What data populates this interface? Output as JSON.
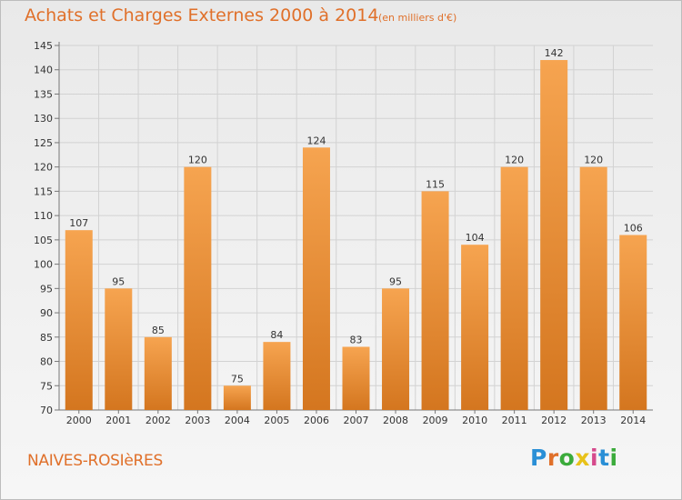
{
  "header": {
    "title": "Achats et Charges Externes 2000 à 2014",
    "subtitle": "(en milliers d'€)"
  },
  "footer": {
    "place": "NAIVES-ROSIèRES",
    "logo": "Proxiti"
  },
  "colors": {
    "accent": "#e0702a",
    "bar_light": "#f6a450",
    "bar_dark": "#d4761f",
    "logo_letters": [
      "#2a8fd6",
      "#e0702a",
      "#3bab3b",
      "#e8c21a",
      "#d64a8c",
      "#2a8fd6",
      "#3bab3b"
    ]
  },
  "chart_data": {
    "type": "bar",
    "categories": [
      "2000",
      "2001",
      "2002",
      "2003",
      "2004",
      "2005",
      "2006",
      "2007",
      "2008",
      "2009",
      "2010",
      "2011",
      "2012",
      "2013",
      "2014"
    ],
    "values": [
      107,
      95,
      85,
      120,
      75,
      84,
      124,
      83,
      95,
      115,
      104,
      120,
      142,
      120,
      106
    ],
    "data_labels": [
      "107",
      "95",
      "85",
      "120",
      "75",
      "84",
      "124",
      "83",
      "95",
      "115",
      "104",
      "120",
      "142",
      "120",
      "106"
    ],
    "ylim": [
      70,
      145
    ],
    "yticks": [
      70,
      75,
      80,
      85,
      90,
      95,
      100,
      105,
      110,
      115,
      120,
      125,
      130,
      135,
      140,
      145
    ],
    "grid": true,
    "legend": "none"
  }
}
